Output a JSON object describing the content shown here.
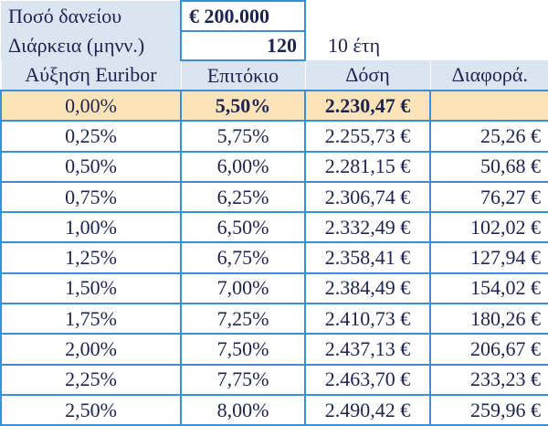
{
  "loan": {
    "amount_label": "Ποσό δανείου",
    "amount": "€ 200.000",
    "duration_label": "Διάρκεια (μηνν.)",
    "duration": "120",
    "duration_years": "10 έτη"
  },
  "table": {
    "header": [
      "Αύξηση Euribor",
      "Επιτόκιο",
      "Δόση",
      "Διαφορά."
    ],
    "rows": [
      [
        "0,00%",
        "5,50%",
        "2.230,47 €"
      ],
      [
        "0,25%",
        "5,75%",
        "2.255,73 €",
        "25,26 €"
      ],
      [
        "0,50%",
        "6,00%",
        "2.281,15 €",
        "50,68 €"
      ],
      [
        "0,75%",
        "6,25%",
        "2.306,74 €",
        "76,27 €"
      ],
      [
        "1,00%",
        "6,50%",
        "2.332,49 €",
        "102,02 €"
      ],
      [
        "1,25%",
        "6,75%",
        "2.358,41 €",
        "127,94 €"
      ],
      [
        "1,50%",
        "7,00%",
        "2.384,49 €",
        "154,02 €"
      ],
      [
        "1,75%",
        "7,25%",
        "2.410,73 €",
        "180,26 €"
      ],
      [
        "2,00%",
        "7,50%",
        "2.437,13 €",
        "206,67 €"
      ],
      [
        "2,25%",
        "7,75%",
        "2.463,70 €",
        "233,23 €"
      ],
      [
        "2,50%",
        "8,00%",
        "2.490,42 €",
        "259,96 €"
      ]
    ]
  }
}
